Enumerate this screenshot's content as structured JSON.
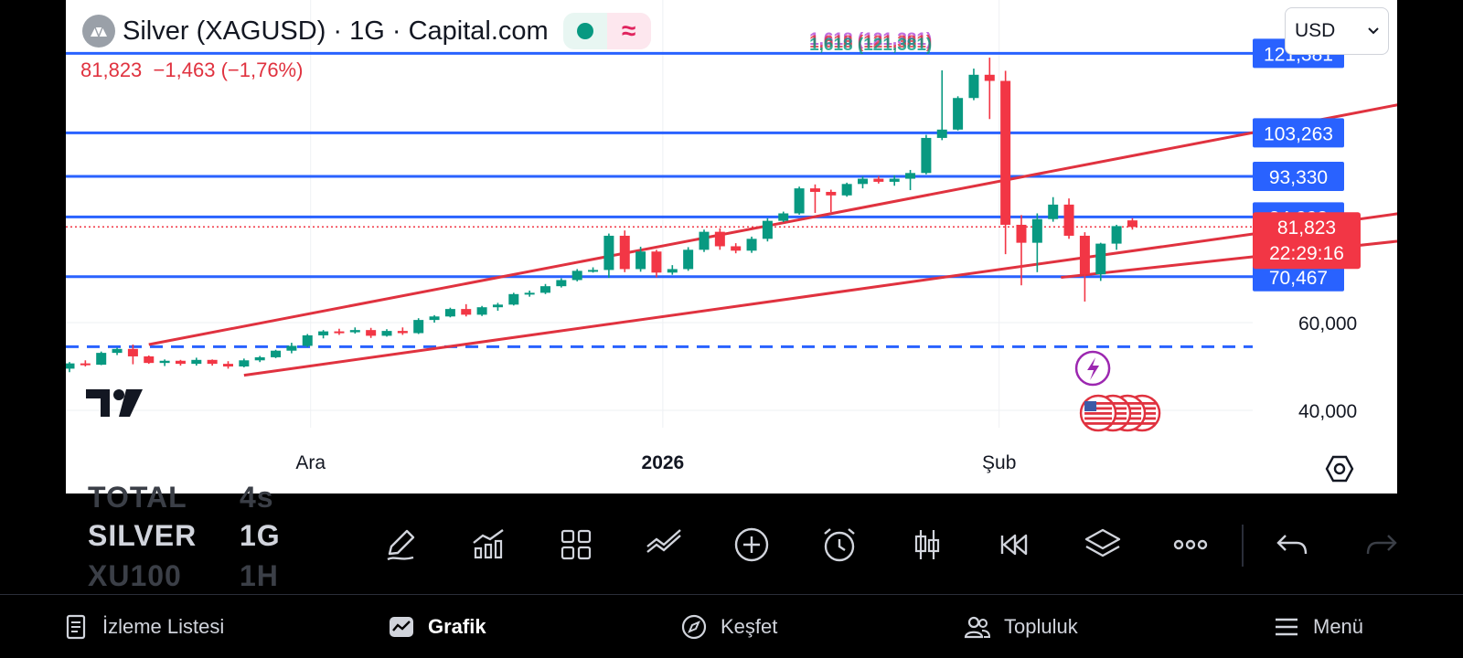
{
  "symbol": {
    "title": "Silver (XAGUSD) · 1G · Capital.com",
    "price": "81,823",
    "change": "−1,463",
    "change_pct": "(−1,76%)",
    "status_icon": "market-open-dot",
    "wave_icon": "≈"
  },
  "currency": {
    "value": "USD",
    "options": [
      "USD"
    ]
  },
  "colors": {
    "up": "#089981",
    "down": "#f23645",
    "level_line": "#2962ff",
    "channel": "#e0323f"
  },
  "chart_data": {
    "type": "candlestick",
    "x_ticks": [
      {
        "label": "Ara",
        "bold": false
      },
      {
        "label": "2026",
        "bold": true
      },
      {
        "label": "Şub",
        "bold": false
      }
    ],
    "y_ticks": [
      "60,000",
      "40,000"
    ],
    "y_range": [
      28,
      128
    ],
    "candles": [
      [
        49.5,
        51.0,
        48.7,
        50.7
      ],
      [
        50.7,
        51.4,
        50.0,
        50.4
      ],
      [
        50.4,
        53.4,
        50.3,
        53.1
      ],
      [
        53.1,
        54.3,
        52.6,
        54.0
      ],
      [
        54.0,
        55.0,
        50.5,
        52.3
      ],
      [
        52.3,
        52.5,
        50.6,
        50.8
      ],
      [
        50.8,
        51.6,
        50.1,
        51.3
      ],
      [
        51.3,
        51.5,
        50.2,
        50.6
      ],
      [
        50.6,
        52.0,
        50.2,
        51.5
      ],
      [
        51.5,
        51.6,
        50.2,
        50.6
      ],
      [
        50.6,
        51.2,
        49.5,
        50.0
      ],
      [
        50.0,
        51.8,
        49.8,
        51.4
      ],
      [
        51.4,
        52.4,
        51.0,
        52.1
      ],
      [
        52.1,
        53.8,
        51.9,
        53.6
      ],
      [
        53.6,
        55.4,
        53.0,
        54.7
      ],
      [
        54.7,
        57.4,
        54.4,
        57.1
      ],
      [
        57.1,
        58.3,
        56.4,
        58.0
      ],
      [
        58.0,
        58.6,
        57.2,
        57.8
      ],
      [
        57.8,
        58.9,
        57.5,
        58.3
      ],
      [
        58.3,
        58.8,
        56.5,
        57.0
      ],
      [
        57.0,
        58.5,
        56.8,
        58.1
      ],
      [
        58.1,
        58.9,
        57.2,
        57.6
      ],
      [
        57.6,
        61.0,
        57.4,
        60.6
      ],
      [
        60.6,
        61.7,
        60.0,
        61.4
      ],
      [
        61.4,
        63.4,
        61.2,
        63.1
      ],
      [
        63.1,
        64.2,
        61.4,
        61.8
      ],
      [
        61.8,
        63.8,
        61.5,
        63.5
      ],
      [
        63.5,
        64.5,
        62.7,
        64.1
      ],
      [
        64.1,
        66.8,
        63.9,
        66.5
      ],
      [
        66.5,
        67.3,
        65.9,
        66.8
      ],
      [
        66.8,
        68.8,
        66.5,
        68.3
      ],
      [
        68.3,
        70.1,
        68.0,
        69.7
      ],
      [
        69.7,
        72.2,
        69.4,
        71.8
      ],
      [
        71.8,
        72.6,
        71.4,
        72.0
      ],
      [
        72.0,
        80.3,
        70.2,
        79.8
      ],
      [
        79.8,
        81.0,
        71.5,
        72.2
      ],
      [
        72.2,
        77.3,
        71.6,
        76.2
      ],
      [
        76.2,
        76.6,
        70.3,
        71.4
      ],
      [
        71.4,
        73.1,
        70.9,
        72.2
      ],
      [
        72.2,
        77.2,
        71.8,
        76.6
      ],
      [
        76.6,
        81.2,
        76.1,
        80.7
      ],
      [
        80.7,
        81.5,
        76.6,
        77.4
      ],
      [
        77.4,
        78.1,
        75.8,
        76.4
      ],
      [
        76.4,
        79.6,
        75.9,
        79.1
      ],
      [
        79.1,
        83.8,
        78.5,
        83.2
      ],
      [
        83.2,
        85.3,
        82.9,
        84.9
      ],
      [
        84.9,
        91.0,
        84.6,
        90.6
      ],
      [
        90.6,
        91.5,
        85.0,
        89.8
      ],
      [
        89.8,
        90.3,
        85.2,
        89.0
      ],
      [
        89.0,
        91.9,
        88.7,
        91.6
      ],
      [
        91.6,
        93.3,
        90.6,
        92.8
      ],
      [
        92.8,
        93.4,
        91.7,
        92.1
      ],
      [
        92.1,
        93.6,
        91.2,
        92.8
      ],
      [
        92.8,
        94.8,
        90.2,
        94.1
      ],
      [
        94.1,
        102.8,
        93.8,
        102.1
      ],
      [
        102.1,
        117.5,
        101.6,
        104.0
      ],
      [
        104.0,
        111.6,
        103.8,
        111.2
      ],
      [
        111.2,
        117.9,
        110.7,
        116.5
      ],
      [
        116.5,
        120.4,
        106.4,
        115.1
      ],
      [
        115.1,
        117.4,
        75.6,
        82.3
      ],
      [
        82.3,
        84.5,
        68.5,
        78.2
      ],
      [
        78.2,
        84.9,
        71.5,
        83.6
      ],
      [
        83.6,
        88.6,
        83.0,
        86.9
      ],
      [
        86.9,
        88.3,
        79.1,
        79.8
      ],
      [
        79.8,
        80.6,
        64.8,
        71.0
      ],
      [
        71.0,
        78.2,
        69.5,
        78.0
      ],
      [
        78.0,
        82.3,
        76.6,
        82.0
      ],
      [
        83.3,
        83.8,
        81.2,
        81.8
      ]
    ],
    "horizontal_levels": [
      "121,381",
      "103,263",
      "93,330",
      "84,093",
      "70,467"
    ],
    "dashed_level": 54.5,
    "dotted_price": 81.823,
    "channel_lines": [
      {
        "x1": 5,
        "y1": 55.0,
        "x2": 90,
        "y2": 114.0
      },
      {
        "x1": 11,
        "y1": 48.0,
        "x2": 90,
        "y2": 88.0
      },
      {
        "x1": 62.5,
        "y1": 70.3,
        "x2": 90,
        "y2": 81.0
      }
    ],
    "fib_label": "1,618 (121,381)",
    "current_label": {
      "price": "81,823",
      "time": "22:29:16"
    },
    "grid": "vertical"
  },
  "toolbar": {
    "symbols_left": [
      "TOTAL",
      "SILVER",
      "XU100"
    ],
    "symbols_right": [
      "4s",
      "1G",
      "1H"
    ],
    "tools": [
      {
        "name": "draw-pencil-icon",
        "label": ""
      },
      {
        "name": "indicators-icon",
        "label": ""
      },
      {
        "name": "layouts-grid-icon",
        "label": ""
      },
      {
        "name": "compare-icon",
        "label": ""
      },
      {
        "name": "add-plus-icon",
        "label": ""
      },
      {
        "name": "alert-clock-icon",
        "label": ""
      },
      {
        "name": "chart-type-candles-icon",
        "label": ""
      },
      {
        "name": "replay-icon",
        "label": ""
      },
      {
        "name": "layers-icon",
        "label": ""
      },
      {
        "name": "more-dots-icon",
        "label": ""
      },
      {
        "name": "undo-icon",
        "label": ""
      },
      {
        "name": "redo-icon",
        "label": ""
      }
    ]
  },
  "bottom_nav": [
    {
      "icon": "watchlist-icon",
      "label": "İzleme Listesi"
    },
    {
      "icon": "chart-icon",
      "label": "Grafik"
    },
    {
      "icon": "compass-icon",
      "label": "Keşfet"
    },
    {
      "icon": "community-icon",
      "label": "Topluluk"
    },
    {
      "icon": "menu-icon",
      "label": "Menü"
    }
  ]
}
